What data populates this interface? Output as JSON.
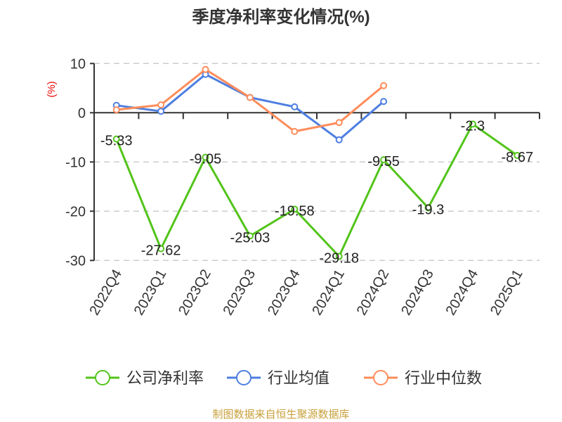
{
  "chart_data": {
    "type": "line",
    "title": "季度净利率变化情况(%)",
    "ylabel": "(%)",
    "xlabel": "",
    "ylim": [
      -30,
      10
    ],
    "yticks": [
      10,
      0,
      -10,
      -20,
      -30
    ],
    "grid": true,
    "legend_position": "bottom",
    "categories": [
      "2022Q4",
      "2023Q1",
      "2023Q2",
      "2023Q3",
      "2023Q4",
      "2024Q1",
      "2024Q2",
      "2024Q3",
      "2024Q4",
      "2025Q1"
    ],
    "series": [
      {
        "name": "公司净利率",
        "color": "#52c41a",
        "values": [
          -5.33,
          -27.62,
          -9.05,
          -25.03,
          -19.58,
          -29.18,
          -9.55,
          -19.3,
          -2.3,
          -8.67
        ],
        "labels": [
          "-5.33",
          "-27.62",
          "-9.05",
          "-25.03",
          "-19.58",
          "-29.18",
          "-9.55",
          "-19.3",
          "-2.3",
          "-8.67"
        ]
      },
      {
        "name": "行业均值",
        "color": "#4e7fe0",
        "values": [
          1.5,
          0.3,
          7.8,
          3.1,
          1.2,
          -5.5,
          2.3,
          null,
          null,
          null
        ]
      },
      {
        "name": "行业中位数",
        "color": "#ff8c5a",
        "values": [
          0.6,
          1.6,
          8.8,
          3.1,
          -3.8,
          -2.0,
          5.5,
          null,
          null,
          null
        ]
      }
    ]
  },
  "footer": "制图数据来自恒生聚源数据库"
}
